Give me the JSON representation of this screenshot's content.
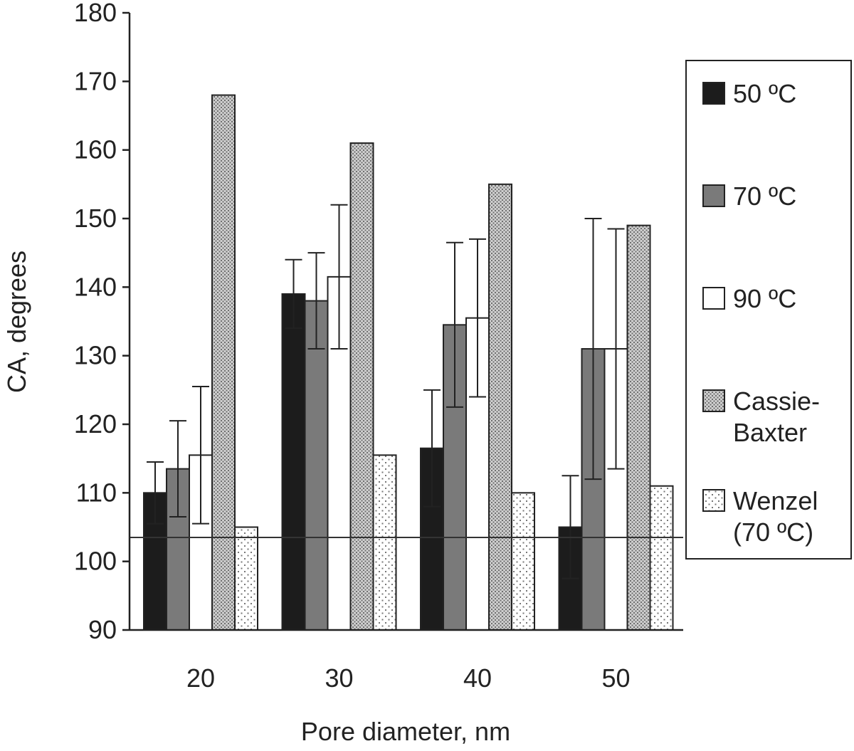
{
  "chart_data": {
    "type": "bar",
    "title": "",
    "xlabel": "Pore diameter, nm",
    "ylabel": "CA, degrees",
    "ylim": [
      90,
      180
    ],
    "yticks": [
      90,
      100,
      110,
      120,
      130,
      140,
      150,
      160,
      170,
      180
    ],
    "categories": [
      "20",
      "30",
      "40",
      "50"
    ],
    "grid": false,
    "legend_position": "right",
    "reference_line": 103.5,
    "series": [
      {
        "name": "50 ºC",
        "name_lines": [
          "50 ºC"
        ],
        "pattern": "solid-dark",
        "color": "#1c1c1c",
        "values": [
          110,
          139,
          116.5,
          105
        ],
        "error": [
          4.5,
          5,
          8.5,
          7.5
        ]
      },
      {
        "name": "70 ºC",
        "name_lines": [
          "70 ºC"
        ],
        "pattern": "solid-gray",
        "color": "#7a7a7a",
        "values": [
          113.5,
          138,
          134.5,
          131
        ],
        "error": [
          7,
          7,
          12,
          19
        ]
      },
      {
        "name": "90 ºC",
        "name_lines": [
          "90 ºC"
        ],
        "pattern": "white",
        "color": "#ffffff",
        "values": [
          115.5,
          141.5,
          135.5,
          131
        ],
        "error": [
          10,
          10.5,
          11.5,
          17.5
        ]
      },
      {
        "name": "Cassie-Baxter",
        "name_lines": [
          "Cassie-",
          "Baxter"
        ],
        "pattern": "fine-dots",
        "color": "#b5b5b5",
        "values": [
          168,
          161,
          155,
          149
        ]
      },
      {
        "name": "Wenzel (70 ºC)",
        "name_lines": [
          "Wenzel",
          "(70 ºC)"
        ],
        "pattern": "sparse-dots",
        "color": "#e6e6e6",
        "values": [
          105,
          115.5,
          110,
          111
        ]
      }
    ]
  }
}
